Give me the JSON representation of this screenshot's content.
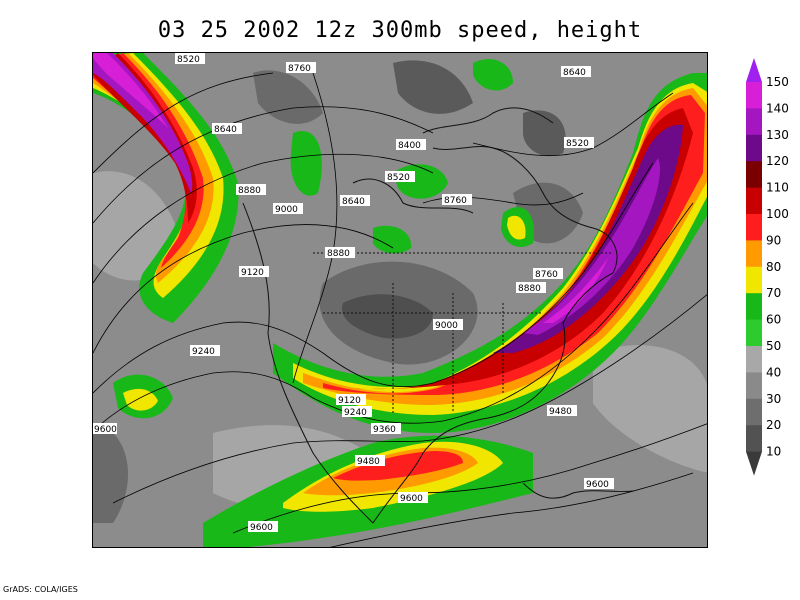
{
  "title": "03 25 2002 12z 300mb speed, height",
  "credit": "GrADS: COLA/IGES",
  "colorbar": {
    "labels": [
      "150",
      "140",
      "130",
      "120",
      "110",
      "100",
      "90",
      "80",
      "70",
      "60",
      "50",
      "40",
      "30",
      "20",
      "10"
    ],
    "colors": [
      "#a020f0",
      "#d81fd8",
      "#a416c0",
      "#6c0a8a",
      "#7a0000",
      "#c80000",
      "#ff1e1e",
      "#ff9a00",
      "#f0e600",
      "#17b817",
      "#2ecb2e",
      "#a8a8a8",
      "#8a8a8a",
      "#6e6e6e",
      "#525252",
      "#3a3a3a"
    ]
  },
  "contour_labels": [
    "8520",
    "8760",
    "8640",
    "8640",
    "8520",
    "8400",
    "8520",
    "8880",
    "8640",
    "8760",
    "9000",
    "8880",
    "9120",
    "8760",
    "8880",
    "9000",
    "9240",
    "9120",
    "9240",
    "9360",
    "9480",
    "9480",
    "9600",
    "9600",
    "9600",
    "9600"
  ]
}
